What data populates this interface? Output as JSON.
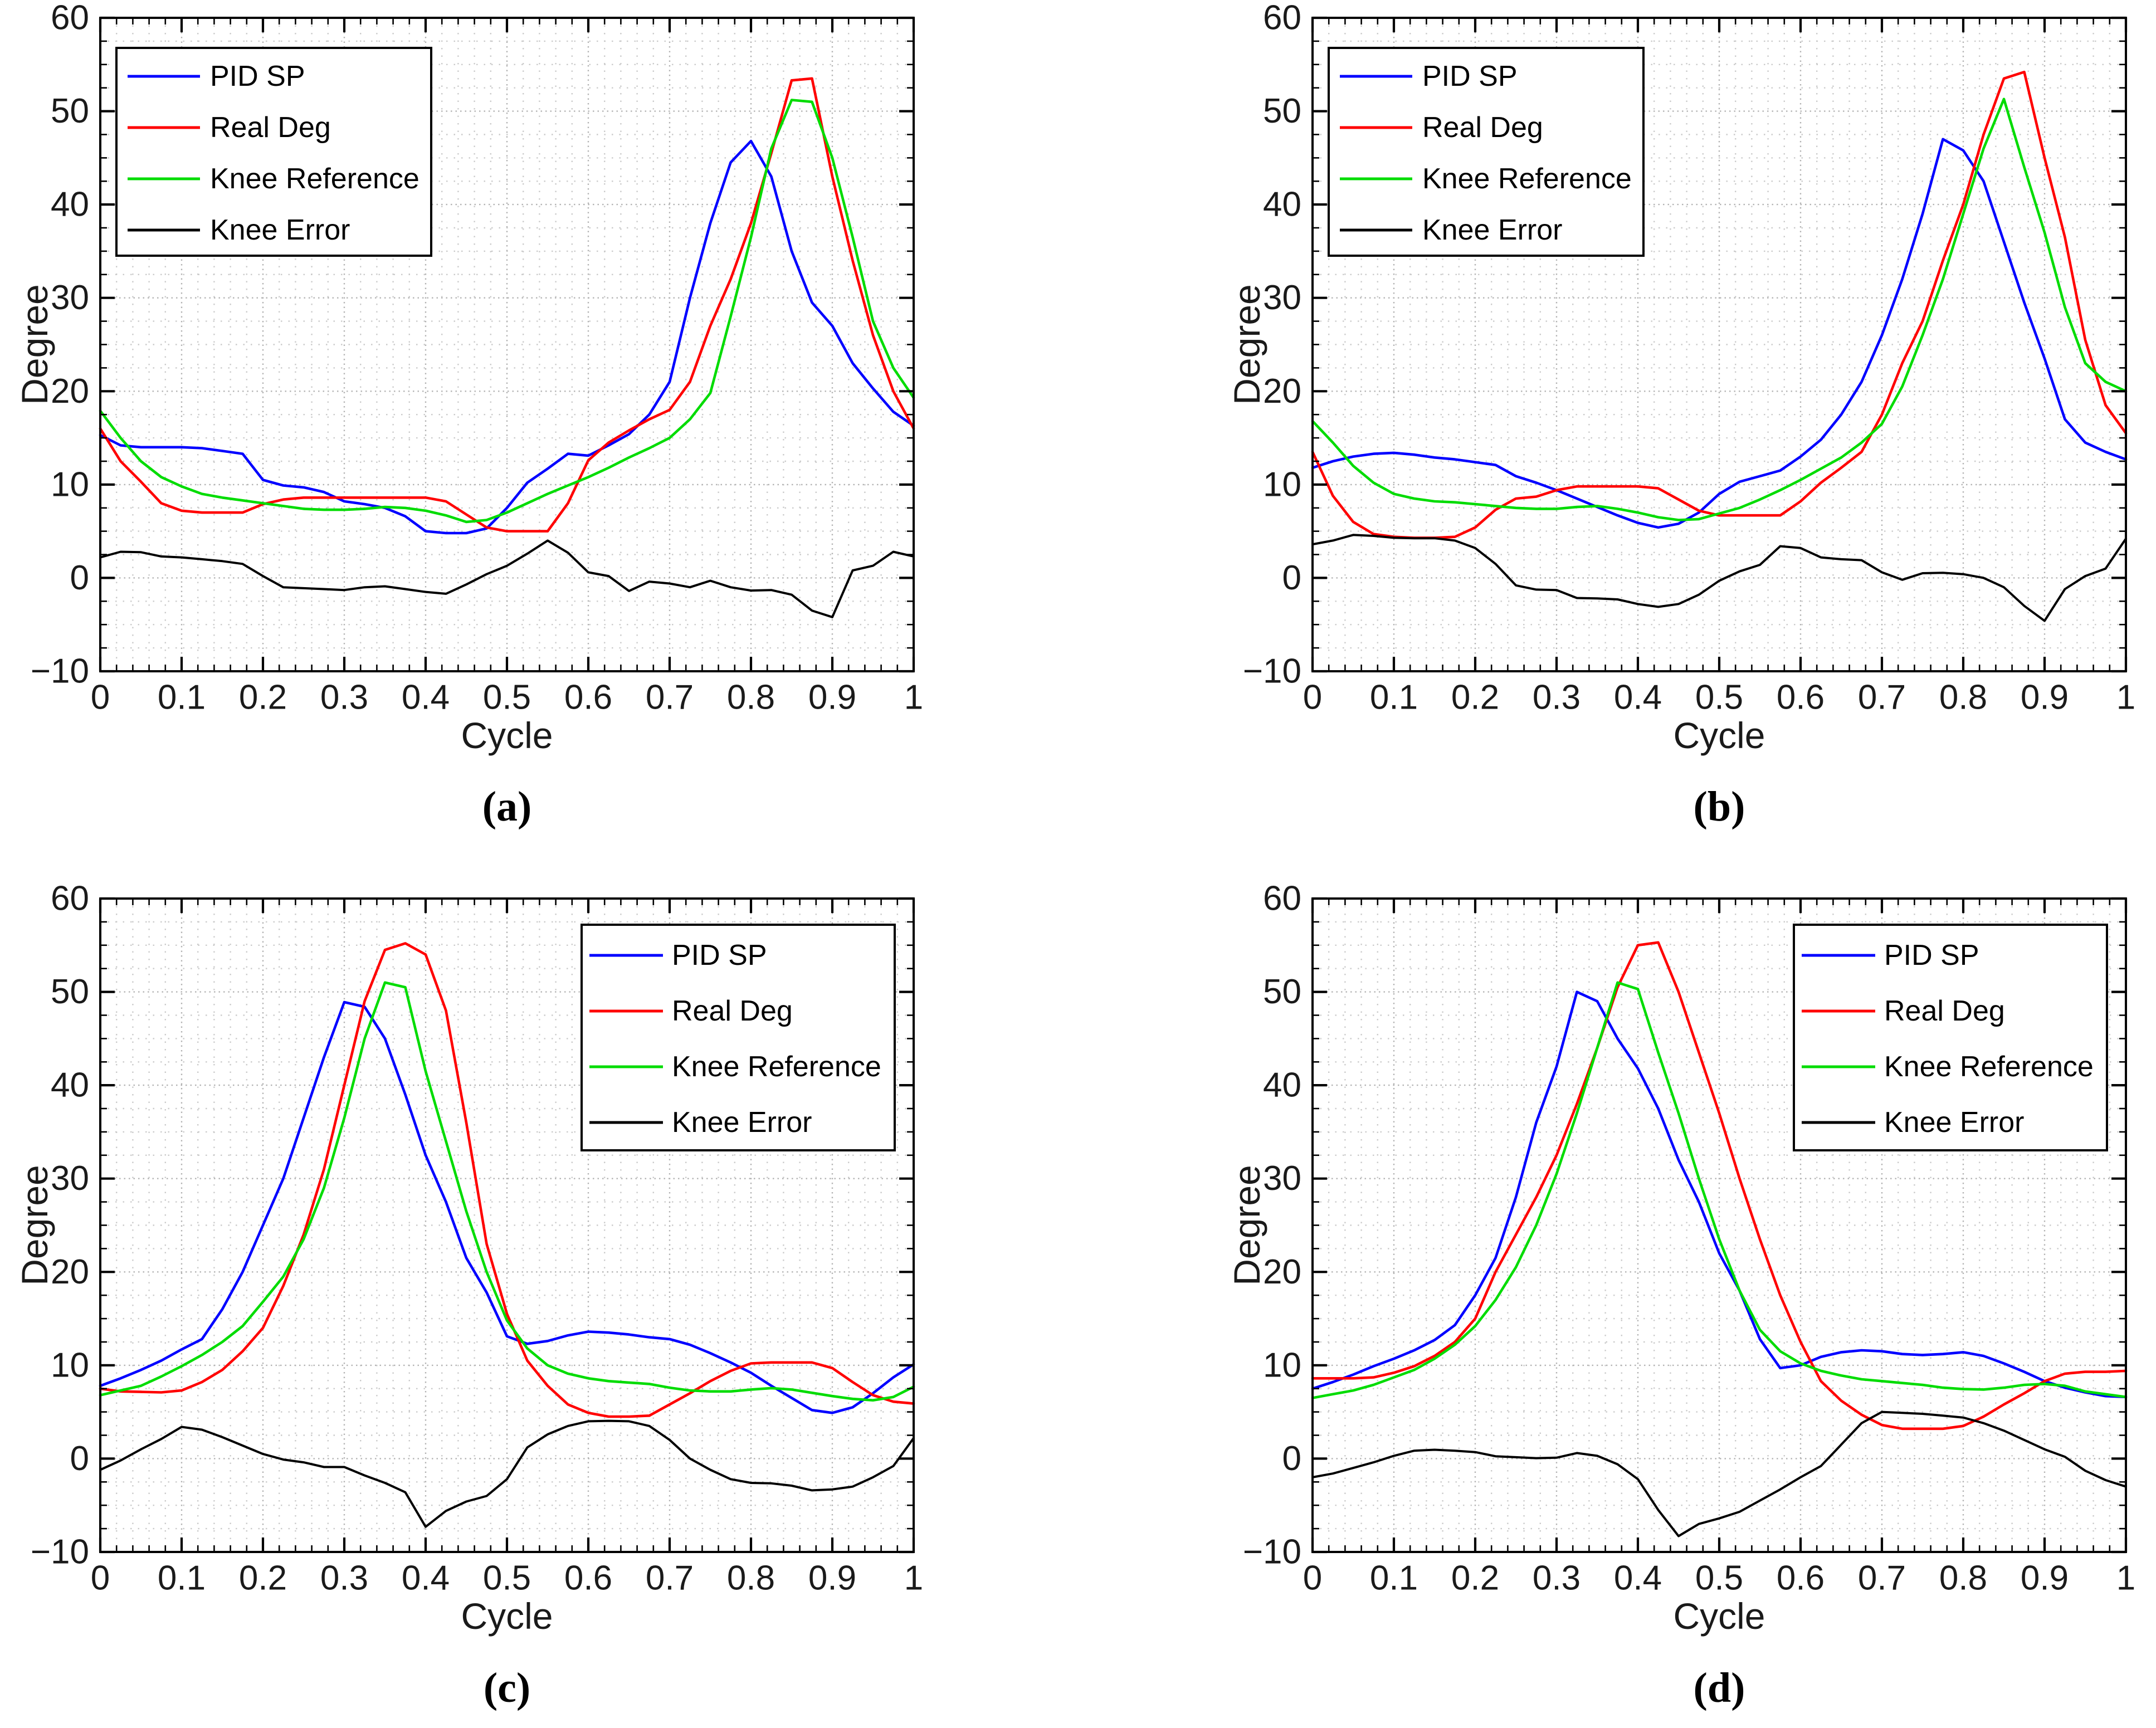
{
  "figure": {
    "background": "#ffffff",
    "axis_color": "#000000",
    "tick_label_color": "#1a1a1a",
    "grid_minor_color": "#cbcbcb",
    "grid_major_color": "#b3b3b3",
    "legend_entries": [
      "PID SP",
      "Real Deg",
      "Knee Reference",
      "Knee Error"
    ],
    "series_colors": {
      "PID SP": "#0000ff",
      "Real Deg": "#ff0000",
      "Knee Reference": "#00dc00",
      "Knee Error": "#000000"
    }
  },
  "cycle_x": [
    0,
    0.025,
    0.05,
    0.075,
    0.1,
    0.125,
    0.15,
    0.175,
    0.2,
    0.225,
    0.25,
    0.275,
    0.3,
    0.325,
    0.35,
    0.375,
    0.4,
    0.425,
    0.45,
    0.475,
    0.5,
    0.525,
    0.55,
    0.575,
    0.6,
    0.625,
    0.65,
    0.675,
    0.7,
    0.725,
    0.75,
    0.775,
    0.8,
    0.825,
    0.85,
    0.875,
    0.9,
    0.925,
    0.95,
    0.975,
    1
  ],
  "chart_data": [
    {
      "type": "line",
      "label": "(a)",
      "xlabel": "Cycle",
      "ylabel": "Degree",
      "xlim": [
        0,
        1
      ],
      "ylim": [
        -10,
        60
      ],
      "xtick_labels": [
        "0",
        "0.1",
        "0.2",
        "0.3",
        "0.4",
        "0.5",
        "0.6",
        "0.7",
        "0.8",
        "0.9",
        "1"
      ],
      "ytick_labels": [
        "−10",
        "0",
        "10",
        "20",
        "30",
        "40",
        "50",
        "60"
      ],
      "grid": "minor-dotted",
      "legend_position": "top-left",
      "series": [
        {
          "name": "PID SP",
          "color": "#0000ff",
          "values": [
            15.3,
            14.2,
            14,
            14,
            14,
            13.9,
            13.6,
            13.3,
            10.5,
            9.9,
            9.7,
            9.2,
            8.2,
            7.9,
            7.5,
            6.6,
            5,
            4.8,
            4.8,
            5.3,
            7.5,
            10.2,
            11.7,
            13.3,
            13.1,
            14.2,
            15.4,
            17.5,
            21,
            30,
            38,
            44.5,
            46.8,
            43,
            35,
            29.5,
            27,
            23,
            20.3,
            17.8,
            16.3
          ]
        },
        {
          "name": "Real Deg",
          "color": "#ff0000",
          "values": [
            16,
            12.5,
            10.3,
            8,
            7.2,
            7,
            7,
            7,
            7.9,
            8.4,
            8.6,
            8.6,
            8.6,
            8.6,
            8.6,
            8.6,
            8.6,
            8.2,
            6.8,
            5.4,
            5,
            5,
            5,
            8,
            12.6,
            14.5,
            15.8,
            17,
            18,
            21,
            27,
            32,
            38,
            45.5,
            53.3,
            53.5,
            43,
            34,
            26,
            20,
            16
          ]
        },
        {
          "name": "Knee Reference",
          "color": "#00dc00",
          "values": [
            17.9,
            15,
            12.5,
            10.8,
            9.8,
            9,
            8.6,
            8.3,
            8,
            7.7,
            7.4,
            7.3,
            7.3,
            7.4,
            7.6,
            7.5,
            7.2,
            6.7,
            6,
            6.2,
            7,
            8,
            9,
            9.9,
            10.8,
            11.8,
            12.9,
            13.9,
            15,
            17,
            19.8,
            28,
            36.5,
            46,
            51.2,
            51,
            45,
            36.5,
            27.5,
            22.5,
            19.3
          ]
        },
        {
          "name": "Knee Error",
          "color": "#000000",
          "values": [
            2.2,
            2.8,
            2.75,
            2.3,
            2.2,
            2,
            1.8,
            1.5,
            0.2,
            -1,
            -1.1,
            -1.2,
            -1.3,
            -1,
            -0.9,
            -1.2,
            -1.5,
            -1.7,
            -0.7,
            0.4,
            1.3,
            2.6,
            4,
            2.7,
            0.6,
            0.2,
            -1.4,
            -0.4,
            -0.6,
            -1,
            -0.3,
            -1,
            -1.35,
            -1.3,
            -1.8,
            -3.5,
            -4.2,
            0.8,
            1.3,
            2.8,
            2.3
          ]
        }
      ]
    },
    {
      "type": "line",
      "label": "(b)",
      "xlabel": "Cycle",
      "ylabel": "Degree",
      "xlim": [
        0,
        1
      ],
      "ylim": [
        -10,
        60
      ],
      "xtick_labels": [
        "0",
        "0.1",
        "0.2",
        "0.3",
        "0.4",
        "0.5",
        "0.6",
        "0.7",
        "0.8",
        "0.9",
        "1"
      ],
      "ytick_labels": [
        "−10",
        "0",
        "10",
        "20",
        "30",
        "40",
        "50",
        "60"
      ],
      "grid": "minor-dotted",
      "legend_position": "top-left",
      "series": [
        {
          "name": "PID SP",
          "color": "#0000ff",
          "values": [
            11.8,
            12.5,
            13,
            13.3,
            13.4,
            13.2,
            12.9,
            12.7,
            12.4,
            12.1,
            10.9,
            10.2,
            9.4,
            8.5,
            7.6,
            6.7,
            5.9,
            5.4,
            5.8,
            7,
            9,
            10.3,
            10.9,
            11.5,
            13,
            14.8,
            17.5,
            21,
            26,
            32,
            39,
            47,
            45.8,
            42.5,
            36,
            29.5,
            23.5,
            17,
            14.5,
            13.5,
            12.7
          ]
        },
        {
          "name": "Real Deg",
          "color": "#ff0000",
          "values": [
            13.5,
            8.8,
            6,
            4.7,
            4.4,
            4.3,
            4.3,
            4.4,
            5.4,
            7.3,
            8.5,
            8.7,
            9.4,
            9.8,
            9.8,
            9.8,
            9.8,
            9.6,
            8.4,
            7.2,
            6.7,
            6.7,
            6.7,
            6.7,
            8.2,
            10.2,
            11.8,
            13.5,
            17.5,
            23,
            27.5,
            34,
            40,
            47.5,
            53.5,
            54.2,
            45,
            36.5,
            25.5,
            18.5,
            15.5
          ]
        },
        {
          "name": "Knee Reference",
          "color": "#00dc00",
          "values": [
            16.8,
            14.5,
            12,
            10.2,
            9,
            8.5,
            8.2,
            8.1,
            7.9,
            7.7,
            7.5,
            7.4,
            7.4,
            7.6,
            7.7,
            7.4,
            7,
            6.5,
            6.2,
            6.3,
            6.9,
            7.5,
            8.4,
            9.4,
            10.5,
            11.7,
            12.9,
            14.5,
            16.5,
            20.5,
            26,
            32,
            39,
            46,
            51.3,
            44,
            37,
            29,
            23,
            21,
            20
          ]
        },
        {
          "name": "Knee Error",
          "color": "#000000",
          "values": [
            3.6,
            4,
            4.6,
            4.5,
            4.3,
            4.25,
            4.25,
            4,
            3.2,
            1.5,
            -0.8,
            -1.25,
            -1.3,
            -2.15,
            -2.2,
            -2.3,
            -2.8,
            -3.1,
            -2.8,
            -1.8,
            -0.3,
            0.7,
            1.4,
            3.4,
            3.2,
            2.2,
            2,
            1.9,
            0.6,
            -0.2,
            0.5,
            0.55,
            0.4,
            0,
            -1,
            -3,
            -4.6,
            -1.2,
            0.2,
            1,
            4.2
          ]
        }
      ]
    },
    {
      "type": "line",
      "label": "(c)",
      "xlabel": "Cycle",
      "ylabel": "Degree",
      "xlim": [
        0,
        1
      ],
      "ylim": [
        -10,
        60
      ],
      "xtick_labels": [
        "0",
        "0.1",
        "0.2",
        "0.3",
        "0.4",
        "0.5",
        "0.6",
        "0.7",
        "0.8",
        "0.9",
        "1"
      ],
      "ytick_labels": [
        "−10",
        "0",
        "10",
        "20",
        "30",
        "40",
        "50",
        "60"
      ],
      "grid": "minor-dotted",
      "legend_position": "top-right",
      "series": [
        {
          "name": "PID SP",
          "color": "#0000ff",
          "values": [
            7.8,
            8.6,
            9.5,
            10.5,
            11.7,
            12.8,
            16,
            20,
            25,
            30,
            36.5,
            43,
            48.9,
            48.4,
            45,
            39,
            32.5,
            27.5,
            21.5,
            17.8,
            13.1,
            12.3,
            12.6,
            13.2,
            13.6,
            13.5,
            13.3,
            13,
            12.8,
            12.2,
            11.3,
            10.3,
            9.2,
            7.8,
            6.5,
            5.2,
            4.9,
            5.5,
            7,
            8.7,
            10.1
          ]
        },
        {
          "name": "Real Deg",
          "color": "#ff0000",
          "values": [
            7.5,
            7.2,
            7.15,
            7.1,
            7.3,
            8.2,
            9.5,
            11.5,
            14,
            18.5,
            24,
            31,
            40,
            49,
            54.5,
            55.2,
            54,
            48,
            36,
            23,
            15.5,
            10.5,
            7.8,
            5.8,
            4.9,
            4.5,
            4.5,
            4.6,
            5.8,
            7,
            8.3,
            9.4,
            10.2,
            10.3,
            10.3,
            10.3,
            9.7,
            8.2,
            6.8,
            6.1,
            5.9
          ]
        },
        {
          "name": "Knee Reference",
          "color": "#00dc00",
          "values": [
            6.8,
            7.3,
            7.8,
            8.8,
            9.9,
            11.1,
            12.5,
            14.2,
            16.8,
            19.5,
            23.5,
            29,
            36.5,
            45,
            51,
            50.5,
            41.5,
            34,
            26.5,
            20,
            14.8,
            11.8,
            10,
            9.1,
            8.6,
            8.3,
            8.15,
            8,
            7.6,
            7.3,
            7.2,
            7.2,
            7.4,
            7.55,
            7.4,
            7.05,
            6.7,
            6.4,
            6.25,
            6.6,
            7.7
          ]
        },
        {
          "name": "Knee Error",
          "color": "#000000",
          "values": [
            -1.2,
            -0.2,
            1,
            2.1,
            3.4,
            3.1,
            2.3,
            1.4,
            0.5,
            -0.1,
            -0.4,
            -0.9,
            -0.9,
            -1.8,
            -2.6,
            -3.6,
            -7.3,
            -5.6,
            -4.6,
            -4,
            -2.2,
            1.2,
            2.6,
            3.5,
            4,
            4.05,
            4,
            3.5,
            2,
            0,
            -1.2,
            -2.2,
            -2.6,
            -2.65,
            -2.9,
            -3.4,
            -3.3,
            -3,
            -2,
            -0.8,
            2.2
          ]
        }
      ]
    },
    {
      "type": "line",
      "label": "(d)",
      "xlabel": "Cycle",
      "ylabel": "Degree",
      "xlim": [
        0,
        1
      ],
      "ylim": [
        -10,
        60
      ],
      "xtick_labels": [
        "0",
        "0.1",
        "0.2",
        "0.3",
        "0.4",
        "0.5",
        "0.6",
        "0.7",
        "0.8",
        "0.9",
        "1"
      ],
      "ytick_labels": [
        "−10",
        "0",
        "10",
        "20",
        "30",
        "40",
        "50",
        "60"
      ],
      "grid": "minor-dotted",
      "legend_position": "top-right",
      "series": [
        {
          "name": "PID SP",
          "color": "#0000ff",
          "values": [
            7.5,
            8.2,
            9,
            9.9,
            10.7,
            11.6,
            12.7,
            14.3,
            17.5,
            21.5,
            28,
            36,
            42,
            50,
            49,
            45,
            41.8,
            37.5,
            32,
            27.5,
            22,
            18,
            12.8,
            9.7,
            10,
            10.9,
            11.4,
            11.6,
            11.5,
            11.2,
            11.1,
            11.2,
            11.4,
            11,
            10.2,
            9.3,
            8.3,
            7.6,
            7.1,
            6.7,
            6.6
          ]
        },
        {
          "name": "Real Deg",
          "color": "#ff0000",
          "values": [
            8.6,
            8.6,
            8.6,
            8.7,
            9.2,
            9.9,
            11,
            12.5,
            15,
            20,
            24,
            28,
            32.5,
            38,
            44,
            50.5,
            55,
            55.3,
            50,
            43.5,
            37,
            30,
            23.5,
            17.5,
            12.5,
            8.3,
            6.2,
            4.7,
            3.6,
            3.2,
            3.2,
            3.2,
            3.5,
            4.5,
            5.8,
            7,
            8.3,
            9.1,
            9.3,
            9.3,
            9.4
          ]
        },
        {
          "name": "Knee Reference",
          "color": "#00dc00",
          "values": [
            6.5,
            6.9,
            7.3,
            7.9,
            8.7,
            9.5,
            10.7,
            12.2,
            14.2,
            17,
            20.5,
            25,
            30.5,
            37,
            44,
            51,
            50.3,
            43.5,
            37,
            30,
            23.5,
            18,
            13.8,
            11.5,
            10.2,
            9.4,
            8.9,
            8.5,
            8.3,
            8.1,
            7.9,
            7.6,
            7.45,
            7.4,
            7.6,
            7.9,
            8,
            7.8,
            7.2,
            6.9,
            6.6
          ]
        },
        {
          "name": "Knee Error",
          "color": "#000000",
          "values": [
            -2,
            -1.6,
            -1,
            -0.4,
            0.3,
            0.85,
            0.95,
            0.85,
            0.7,
            0.25,
            0.15,
            0.05,
            0.1,
            0.6,
            0.3,
            -0.6,
            -2.2,
            -5.5,
            -8.3,
            -7,
            -6.4,
            -5.7,
            -4.5,
            -3.3,
            -2,
            -0.8,
            1.5,
            3.8,
            5,
            4.9,
            4.8,
            4.6,
            4.4,
            3.8,
            3,
            2,
            1,
            0.2,
            -1.3,
            -2.3,
            -3
          ]
        }
      ]
    }
  ]
}
